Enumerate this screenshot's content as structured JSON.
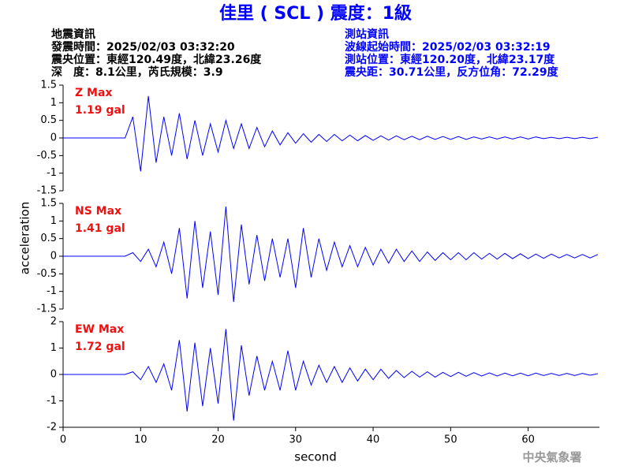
{
  "header": {
    "title": "佳里 ( SCL ) 震度：1級",
    "left": [
      "地震資訊",
      "發震時間：2025/02/03 03:32:20",
      "震央位置：東經120.49度，北緯23.26度",
      "深　度：8.1公里，芮氏規模：3.9"
    ],
    "right": [
      "測站資訊",
      "波線起始時間：2025/02/03 03:32:19",
      "測站位置：東經120.20度，北緯23.17度",
      "震央距：30.71公里，反方位角：72.29度"
    ],
    "footer": "中央氣象署"
  },
  "chart_data": [
    {
      "type": "line",
      "annotation": [
        "Z Max",
        "1.19 gal"
      ],
      "color": "#0000ff",
      "x": [
        0,
        1,
        2,
        3,
        4,
        5,
        6,
        7,
        8,
        9,
        10,
        11,
        12,
        13,
        14,
        15,
        16,
        17,
        18,
        19,
        20,
        21,
        22,
        23,
        24,
        25,
        26,
        27,
        28,
        29,
        30,
        31,
        32,
        33,
        34,
        35,
        36,
        37,
        38,
        39,
        40,
        41,
        42,
        43,
        44,
        45,
        46,
        47,
        48,
        49,
        50,
        51,
        52,
        53,
        54,
        55,
        56,
        57,
        58,
        59,
        60,
        61,
        62,
        63,
        64,
        65,
        66,
        67,
        68,
        69
      ],
      "values": [
        0,
        0,
        0,
        0,
        0,
        0,
        0,
        0,
        0,
        0.6,
        -0.95,
        1.19,
        -0.7,
        0.6,
        -0.5,
        0.7,
        -0.6,
        0.5,
        -0.5,
        0.4,
        -0.4,
        0.5,
        -0.3,
        0.4,
        -0.3,
        0.3,
        -0.25,
        0.2,
        -0.2,
        0.15,
        -0.15,
        0.12,
        -0.12,
        0.1,
        -0.1,
        0.1,
        -0.08,
        0.08,
        -0.08,
        0.07,
        -0.07,
        0.06,
        -0.06,
        0.06,
        -0.05,
        0.05,
        -0.05,
        0.05,
        -0.04,
        0.04,
        -0.04,
        0.04,
        -0.04,
        0.03,
        -0.03,
        0.03,
        -0.03,
        0.03,
        -0.03,
        0.03,
        -0.03,
        0.03,
        -0.02,
        0.02,
        -0.02,
        0.02,
        -0.02,
        0.02,
        -0.02,
        0.02
      ],
      "xlim": [
        0,
        69.2
      ],
      "ylim": [
        -1.5,
        1.5
      ],
      "yticks": [
        1.5,
        1,
        0.5,
        0,
        -0.5,
        -1,
        -1.5
      ]
    },
    {
      "type": "line",
      "annotation": [
        "NS Max",
        "1.41 gal"
      ],
      "color": "#0000ff",
      "ylabel": "acceleration",
      "x": [
        0,
        1,
        2,
        3,
        4,
        5,
        6,
        7,
        8,
        9,
        10,
        11,
        12,
        13,
        14,
        15,
        16,
        17,
        18,
        19,
        20,
        21,
        22,
        23,
        24,
        25,
        26,
        27,
        28,
        29,
        30,
        31,
        32,
        33,
        34,
        35,
        36,
        37,
        38,
        39,
        40,
        41,
        42,
        43,
        44,
        45,
        46,
        47,
        48,
        49,
        50,
        51,
        52,
        53,
        54,
        55,
        56,
        57,
        58,
        59,
        60,
        61,
        62,
        63,
        64,
        65,
        66,
        67,
        68,
        69
      ],
      "values": [
        0,
        0,
        0,
        0,
        0,
        0,
        0,
        0,
        0,
        0.1,
        -0.15,
        0.2,
        -0.3,
        0.4,
        -0.5,
        0.8,
        -1.2,
        1.0,
        -0.9,
        0.7,
        -1.1,
        1.41,
        -1.3,
        0.9,
        -0.8,
        0.6,
        -0.7,
        0.5,
        -0.6,
        0.5,
        -0.9,
        0.8,
        -0.6,
        0.5,
        -0.4,
        0.4,
        -0.3,
        0.3,
        -0.3,
        0.25,
        -0.25,
        0.2,
        -0.2,
        0.2,
        -0.15,
        0.15,
        -0.15,
        0.12,
        -0.12,
        0.1,
        -0.1,
        0.1,
        -0.1,
        0.1,
        -0.08,
        0.08,
        -0.08,
        0.08,
        -0.07,
        0.07,
        -0.07,
        0.06,
        -0.06,
        0.06,
        -0.05,
        0.05,
        -0.05,
        0.05,
        -0.05,
        0.05
      ],
      "xlim": [
        0,
        69.2
      ],
      "ylim": [
        -1.5,
        1.5
      ],
      "yticks": [
        1.5,
        1,
        0.5,
        0,
        -0.5,
        -1,
        -1.5
      ]
    },
    {
      "type": "line",
      "annotation": [
        "EW Max",
        "1.72 gal"
      ],
      "color": "#0000ff",
      "xlabel": "second",
      "x": [
        0,
        1,
        2,
        3,
        4,
        5,
        6,
        7,
        8,
        9,
        10,
        11,
        12,
        13,
        14,
        15,
        16,
        17,
        18,
        19,
        20,
        21,
        22,
        23,
        24,
        25,
        26,
        27,
        28,
        29,
        30,
        31,
        32,
        33,
        34,
        35,
        36,
        37,
        38,
        39,
        40,
        41,
        42,
        43,
        44,
        45,
        46,
        47,
        48,
        49,
        50,
        51,
        52,
        53,
        54,
        55,
        56,
        57,
        58,
        59,
        60,
        61,
        62,
        63,
        64,
        65,
        66,
        67,
        68,
        69
      ],
      "values": [
        0,
        0,
        0,
        0,
        0,
        0,
        0,
        0,
        0,
        0.1,
        -0.2,
        0.3,
        -0.3,
        0.4,
        -0.6,
        1.3,
        -1.4,
        1.2,
        -1.2,
        1.0,
        -1.1,
        1.72,
        -1.75,
        1.1,
        -0.8,
        0.7,
        -0.6,
        0.5,
        -0.6,
        0.9,
        -0.6,
        0.5,
        -0.4,
        0.35,
        -0.3,
        0.3,
        -0.3,
        0.25,
        -0.25,
        0.2,
        -0.2,
        0.2,
        -0.15,
        0.15,
        -0.12,
        0.12,
        -0.1,
        0.1,
        -0.1,
        0.08,
        -0.08,
        0.08,
        -0.07,
        0.07,
        -0.06,
        0.06,
        -0.06,
        0.05,
        -0.05,
        0.05,
        -0.05,
        0.05,
        -0.04,
        0.04,
        -0.04,
        0.04,
        -0.04,
        0.04,
        -0.03,
        0.03
      ],
      "xlim": [
        0,
        69.2
      ],
      "ylim": [
        -2,
        2
      ],
      "yticks": [
        2,
        1,
        0,
        -1,
        -2
      ],
      "xticks": [
        0,
        10,
        20,
        30,
        40,
        50,
        60
      ]
    }
  ]
}
